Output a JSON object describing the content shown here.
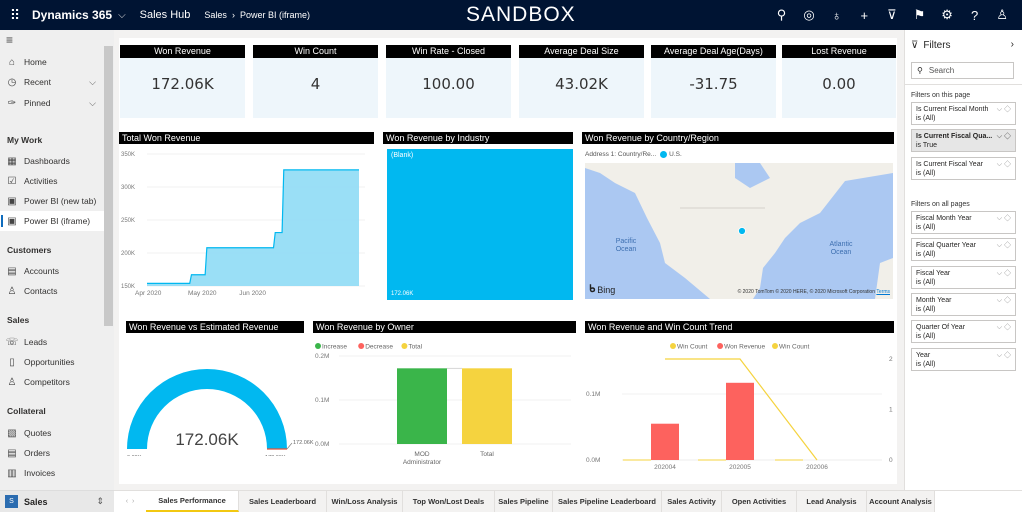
{
  "topbar": {
    "app_name": "Dynamics 365",
    "hub": "Sales Hub",
    "breadcrumb": [
      "Sales",
      "Power BI (iframe)"
    ],
    "environment_banner": "SANDBOX",
    "icons": [
      "search-icon",
      "task-icon",
      "lightbulb-icon",
      "plus-icon",
      "filter-icon",
      "assistant-icon",
      "gear-icon",
      "help-icon",
      "user-icon"
    ]
  },
  "sidebar": {
    "top_items": [
      {
        "label": "Home",
        "icon": "home-icon"
      },
      {
        "label": "Recent",
        "icon": "clock-icon"
      },
      {
        "label": "Pinned",
        "icon": "pin-icon"
      }
    ],
    "groups": [
      {
        "title": "My Work",
        "items": [
          {
            "label": "Dashboards",
            "icon": "dashboard-icon"
          },
          {
            "label": "Activities",
            "icon": "activities-icon"
          },
          {
            "label": "Power BI (new tab)",
            "icon": "powerbi-icon"
          },
          {
            "label": "Power BI (iframe)",
            "icon": "powerbi-icon",
            "active": true
          }
        ]
      },
      {
        "title": "Customers",
        "items": [
          {
            "label": "Accounts",
            "icon": "accounts-icon"
          },
          {
            "label": "Contacts",
            "icon": "contact-icon"
          }
        ]
      },
      {
        "title": "Sales",
        "items": [
          {
            "label": "Leads",
            "icon": "leads-icon"
          },
          {
            "label": "Opportunities",
            "icon": "opportunity-icon"
          },
          {
            "label": "Competitors",
            "icon": "competitor-icon"
          }
        ]
      },
      {
        "title": "Collateral",
        "items": [
          {
            "label": "Quotes",
            "icon": "quote-icon"
          },
          {
            "label": "Orders",
            "icon": "order-icon"
          },
          {
            "label": "Invoices",
            "icon": "invoice-icon"
          }
        ]
      }
    ],
    "area": {
      "badge": "S",
      "label": "Sales"
    }
  },
  "cards": [
    {
      "title": "Won Revenue",
      "value": "172.06K"
    },
    {
      "title": "Win Count",
      "value": "4"
    },
    {
      "title": "Win Rate - Closed",
      "value": "100.00"
    },
    {
      "title": "Average Deal Size",
      "value": "43.02K"
    },
    {
      "title": "Average Deal Age(Days)",
      "value": "-31.75"
    },
    {
      "title": "Lost Revenue",
      "value": "0.00"
    }
  ],
  "map": {
    "title": "Won Revenue by Country/Region",
    "legend_label": "Address 1: Country/Re...",
    "legend_item": "U.S.",
    "labels": [
      "Pacific Ocean",
      "Atlantic Ocean"
    ],
    "provider": "Bing",
    "attribution": "© 2020 TomTom © 2020 HERE, © 2020 Microsoft Corporation",
    "terms": "Terms"
  },
  "filters": {
    "title": "Filters",
    "search_placeholder": "Search",
    "page_section": "Filters on this page",
    "page_filters": [
      {
        "name": "Is Current Fiscal Month",
        "value": "is (All)"
      },
      {
        "name": "Is Current Fiscal Qua...",
        "value": "is True",
        "selected": true
      },
      {
        "name": "Is Current Fiscal Year",
        "value": "is (All)"
      }
    ],
    "all_section": "Filters on all pages",
    "all_filters": [
      {
        "name": "Fiscal Month Year",
        "value": "is (All)"
      },
      {
        "name": "Fiscal Quarter Year",
        "value": "is (All)"
      },
      {
        "name": "Fiscal Year",
        "value": "is (All)"
      },
      {
        "name": "Month Year",
        "value": "is (All)"
      },
      {
        "name": "Quarter Of Year",
        "value": "is (All)"
      },
      {
        "name": "Year",
        "value": "is (All)"
      }
    ]
  },
  "tabs": [
    {
      "label": "Sales Performance",
      "active": true
    },
    {
      "label": "Sales Leaderboard"
    },
    {
      "label": "Win/Loss Analysis"
    },
    {
      "label": "Top Won/Lost Deals"
    },
    {
      "label": "Sales Pipeline"
    },
    {
      "label": "Sales Pipeline Leaderboard"
    },
    {
      "label": "Sales Activity"
    },
    {
      "label": "Open Activities"
    },
    {
      "label": "Lead Analysis"
    },
    {
      "label": "Account Analysis"
    }
  ],
  "colors": {
    "topbar": "#001433",
    "accent_blue": "#01b8f0",
    "area_fill": "#8fdcf5",
    "red": "#fd625e",
    "green": "#3ab54a",
    "yellow": "#f5d33f",
    "active_tab": "#f2c811"
  },
  "chart_data": [
    {
      "id": "total-won-revenue",
      "type": "area",
      "title": "Total Won Revenue",
      "x_ticks": [
        "Apr 2020",
        "May 2020",
        "Jun 2020"
      ],
      "y_ticks": [
        "150K",
        "200K",
        "250K",
        "300K",
        "350K"
      ],
      "ylim": [
        150000,
        350000
      ],
      "points": [
        {
          "day": 0,
          "value": 154000
        },
        {
          "day": 25,
          "value": 154000
        },
        {
          "day": 26,
          "value": 167000
        },
        {
          "day": 34,
          "value": 167000
        },
        {
          "day": 35,
          "value": 208000
        },
        {
          "day": 74,
          "value": 208000
        },
        {
          "day": 75,
          "value": 231000
        },
        {
          "day": 79,
          "value": 231000
        },
        {
          "day": 80,
          "value": 326000
        },
        {
          "day": 124,
          "value": 326000
        }
      ]
    },
    {
      "id": "won-revenue-by-industry",
      "type": "treemap",
      "title": "Won Revenue by Industry",
      "items": [
        {
          "label": "(Blank)",
          "value": "172.06K"
        }
      ]
    },
    {
      "id": "won-vs-estimated",
      "type": "gauge",
      "title": "Won Revenue vs Estimated Revenue",
      "value": 172.06,
      "value_label": "172.06K",
      "min_label": "0.00K",
      "max_label": "172.06K",
      "target_label": "172.06K"
    },
    {
      "id": "won-revenue-by-owner",
      "type": "waterfall",
      "title": "Won Revenue by Owner",
      "legend": [
        "Increase",
        "Decrease",
        "Total"
      ],
      "categories": [
        "MOD Administrator",
        "Total"
      ],
      "values": [
        0.172,
        0.172
      ],
      "kinds": [
        "Increase",
        "Total"
      ],
      "y_ticks": [
        "0.0M",
        "0.1M",
        "0.2M"
      ],
      "ylim": [
        0,
        0.2
      ]
    },
    {
      "id": "won-revenue-win-count-trend",
      "type": "bar+line",
      "title": "Won Revenue and Win Count Trend",
      "legend": [
        "Win Count",
        "Won Revenue",
        "Win Count"
      ],
      "categories": [
        "202004",
        "202005",
        "202006"
      ],
      "series": [
        {
          "name": "Won Revenue",
          "values": [
            0.055,
            0.117,
            0
          ]
        },
        {
          "name": "Win Count",
          "values": [
            2,
            2,
            0
          ]
        }
      ],
      "y_ticks": [
        "0.0M",
        "0.1M"
      ],
      "y2_ticks": [
        "0",
        "1",
        "2"
      ],
      "ylim": [
        0,
        0.15
      ],
      "y2lim": [
        0,
        2
      ]
    }
  ]
}
